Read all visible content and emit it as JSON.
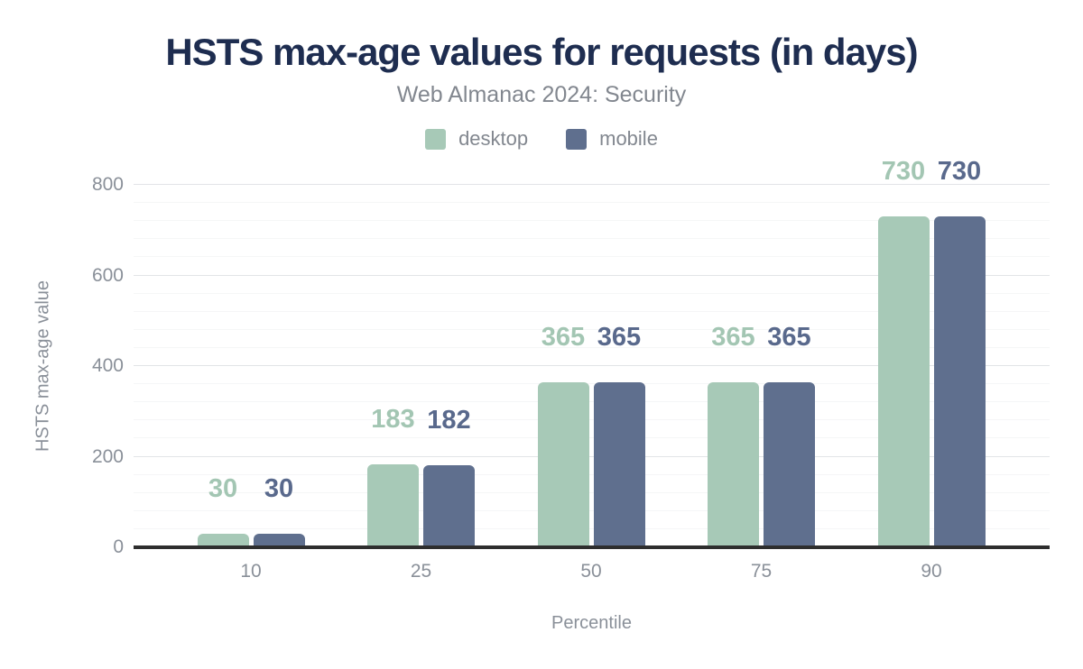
{
  "header": {
    "title": "HSTS max-age values for requests (in days)",
    "subtitle": "Web Almanac 2024: Security"
  },
  "chart_data": {
    "type": "bar",
    "title": "HSTS max-age values for requests (in days)",
    "subtitle": "Web Almanac 2024: Security",
    "categories": [
      "10",
      "25",
      "50",
      "75",
      "90"
    ],
    "series": [
      {
        "name": "desktop",
        "color": "#a7c9b7",
        "label_color": "#a3c6b3",
        "values": [
          30,
          183,
          365,
          365,
          730
        ]
      },
      {
        "name": "mobile",
        "color": "#5f6f8e",
        "label_color": "#59698c",
        "values": [
          30,
          182,
          365,
          365,
          730
        ]
      }
    ],
    "data_labels": true,
    "xlabel": "Percentile",
    "ylabel": "HSTS max-age value",
    "ylim": [
      0,
      800
    ],
    "yticks": [
      0,
      200,
      400,
      600,
      800
    ],
    "minor_grid_step": 40,
    "grid": true,
    "legend_position": "top"
  },
  "colors": {
    "title_text": "#1e2d50",
    "muted_text": "#8a9099",
    "axis_line": "#2e2e2e",
    "major_gridline": "#e2e4e7",
    "minor_gridline": "#f5f6f7",
    "background": "#ffffff"
  }
}
